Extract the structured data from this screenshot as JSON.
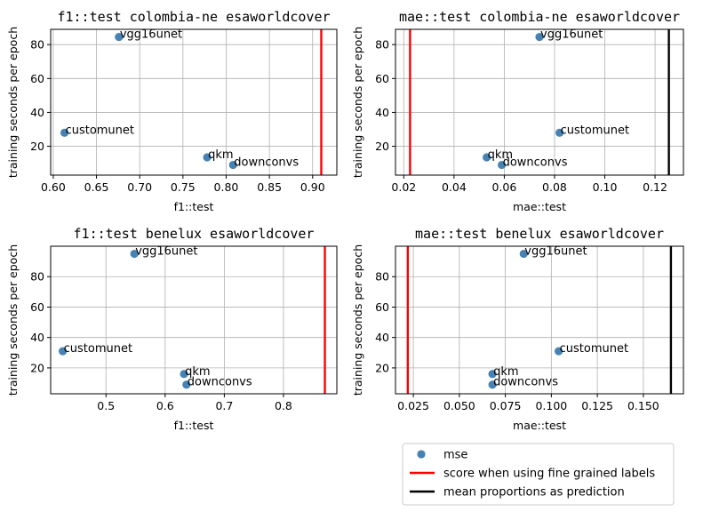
{
  "colors": {
    "point": "#4682b4",
    "fine": "#ff0000",
    "mean": "#000000",
    "grid": "#b0b0b0"
  },
  "legend": {
    "items": [
      {
        "label": "mse",
        "kind": "marker",
        "color": "#4682b4"
      },
      {
        "label": "score when using fine grained labels",
        "kind": "line",
        "color": "#ff0000"
      },
      {
        "label": "mean proportions as prediction",
        "kind": "line",
        "color": "#000000"
      }
    ]
  },
  "chart_data": [
    {
      "type": "scatter",
      "title": "f1::test  colombia-ne  esaworldcover",
      "xlabel": "f1::test",
      "ylabel": "training seconds per epoch",
      "xlim": [
        0.597,
        0.928
      ],
      "ylim": [
        3,
        89
      ],
      "xticks": [
        "0.60",
        "0.65",
        "0.70",
        "0.75",
        "0.80",
        "0.85",
        "0.90"
      ],
      "xtick_values": [
        0.6,
        0.65,
        0.7,
        0.75,
        0.8,
        0.85,
        0.9
      ],
      "yticks": [
        "20",
        "40",
        "60",
        "80"
      ],
      "ytick_values": [
        20,
        40,
        60,
        80
      ],
      "points": [
        {
          "name": "vgg16unet",
          "x": 0.676,
          "y": 84.5
        },
        {
          "name": "customunet",
          "x": 0.613,
          "y": 28.0
        },
        {
          "name": "qkm",
          "x": 0.778,
          "y": 13.5
        },
        {
          "name": "downconvs",
          "x": 0.808,
          "y": 9.0
        }
      ],
      "vlines": [
        {
          "x": 0.91,
          "color": "#ff0000"
        }
      ],
      "grid": true
    },
    {
      "type": "scatter",
      "title": "mae::test  colombia-ne  esaworldcover",
      "xlabel": "mae::test",
      "ylabel": "training seconds per epoch",
      "xlim": [
        0.0167,
        0.1313
      ],
      "ylim": [
        3,
        89
      ],
      "xticks": [
        "0.02",
        "0.04",
        "0.06",
        "0.08",
        "0.10",
        "0.12"
      ],
      "xtick_values": [
        0.02,
        0.04,
        0.06,
        0.08,
        0.1,
        0.12
      ],
      "yticks": [
        "20",
        "40",
        "60",
        "80"
      ],
      "ytick_values": [
        20,
        40,
        60,
        80
      ],
      "points": [
        {
          "name": "vgg16unet",
          "x": 0.074,
          "y": 84.5
        },
        {
          "name": "customunet",
          "x": 0.082,
          "y": 28.0
        },
        {
          "name": "qkm",
          "x": 0.053,
          "y": 13.5
        },
        {
          "name": "downconvs",
          "x": 0.059,
          "y": 9.0
        }
      ],
      "vlines": [
        {
          "x": 0.0225,
          "color": "#ff0000"
        },
        {
          "x": 0.1255,
          "color": "#000000"
        }
      ],
      "grid": true
    },
    {
      "type": "scatter",
      "title": "f1::test  benelux  esaworldcover",
      "xlabel": "f1::test",
      "ylabel": "training seconds per epoch",
      "xlim": [
        0.4065,
        0.8902
      ],
      "ylim": [
        3,
        100
      ],
      "xticks": [
        "0.5",
        "0.6",
        "0.7",
        "0.8"
      ],
      "xtick_values": [
        0.5,
        0.6,
        0.7,
        0.8
      ],
      "yticks": [
        "20",
        "40",
        "60",
        "80"
      ],
      "ytick_values": [
        20,
        40,
        60,
        80
      ],
      "points": [
        {
          "name": "vgg16unet",
          "x": 0.548,
          "y": 95.0
        },
        {
          "name": "customunet",
          "x": 0.427,
          "y": 31.0
        },
        {
          "name": "qkm",
          "x": 0.632,
          "y": 16.0
        },
        {
          "name": "downconvs",
          "x": 0.636,
          "y": 9.0
        }
      ],
      "vlines": [
        {
          "x": 0.87,
          "color": "#ff0000"
        }
      ],
      "grid": true
    },
    {
      "type": "scatter",
      "title": "mae::test  benelux  esaworldcover",
      "xlabel": "mae::test",
      "ylabel": "training seconds per epoch",
      "xlim": [
        0.0153,
        0.1718
      ],
      "ylim": [
        3,
        100
      ],
      "xticks": [
        "0.025",
        "0.050",
        "0.075",
        "0.100",
        "0.125",
        "0.150"
      ],
      "xtick_values": [
        0.025,
        0.05,
        0.075,
        0.1,
        0.125,
        0.15
      ],
      "yticks": [
        "20",
        "40",
        "60",
        "80"
      ],
      "ytick_values": [
        20,
        40,
        60,
        80
      ],
      "points": [
        {
          "name": "vgg16unet",
          "x": 0.085,
          "y": 95.0
        },
        {
          "name": "customunet",
          "x": 0.104,
          "y": 31.0
        },
        {
          "name": "qkm",
          "x": 0.068,
          "y": 16.0
        },
        {
          "name": "downconvs",
          "x": 0.068,
          "y": 9.0
        }
      ],
      "vlines": [
        {
          "x": 0.022,
          "color": "#ff0000"
        },
        {
          "x": 0.165,
          "color": "#000000"
        }
      ],
      "grid": true
    }
  ]
}
